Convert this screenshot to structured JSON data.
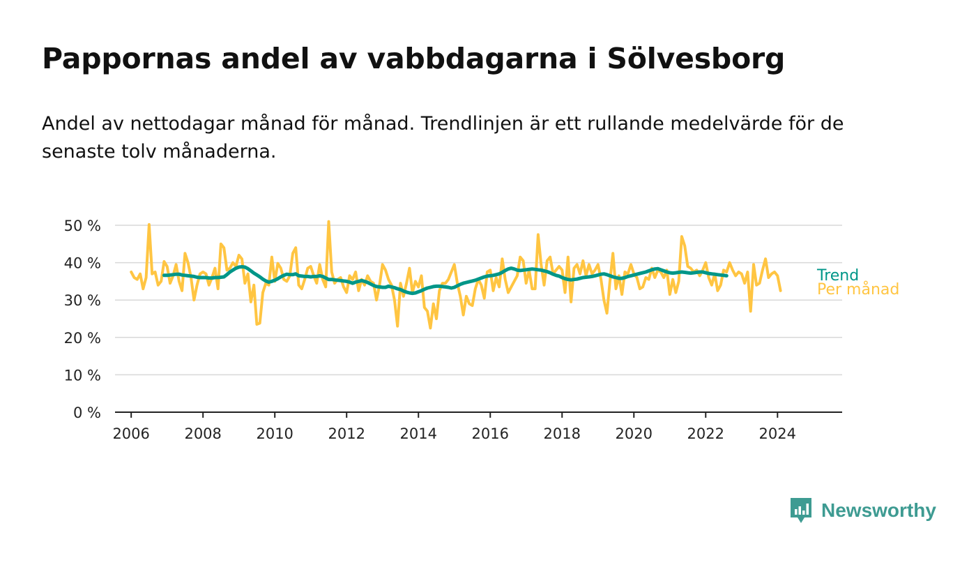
{
  "title": "Pappornas andel av vabbdagarna i Sölvesborg",
  "subtitle": "Andel av nettodagar månad för månad. Trendlinjen är ett rullande medelvärde för de senaste tolv månaderna.",
  "brand": {
    "name": "Newsworthy",
    "icon": "newsworthy-logo-icon"
  },
  "colors": {
    "monthly": "#ffc542",
    "trend": "#009688",
    "grid": "#d8d8d8",
    "axis": "#222222",
    "text": "#222222"
  },
  "chart_data": {
    "type": "line",
    "title": "Pappornas andel av vabbdagarna i Sölvesborg",
    "xlabel": "",
    "ylabel": "",
    "xlim": [
      2005.55,
      2025.8
    ],
    "ylim": [
      0,
      50
    ],
    "grid": true,
    "y_ticks": [
      0,
      10,
      20,
      30,
      40,
      50
    ],
    "y_tick_labels": [
      "0 %",
      "10 %",
      "20 %",
      "30 %",
      "40 %",
      "50 %"
    ],
    "x_ticks": [
      2006,
      2008,
      2010,
      2012,
      2014,
      2016,
      2018,
      2020,
      2022,
      2024
    ],
    "x_tick_labels": [
      "2006",
      "2008",
      "2010",
      "2012",
      "2014",
      "2016",
      "2018",
      "2020",
      "2022",
      "2024"
    ],
    "legend_position": "right-end-of-lines",
    "series": [
      {
        "name": "Per månad",
        "start": 2006.0,
        "step_months": 1,
        "values": [
          37.5,
          36.0,
          35.5,
          37.0,
          33.0,
          36.0,
          50.2,
          37.0,
          37.5,
          34.0,
          35.0,
          40.3,
          39.0,
          34.5,
          36.5,
          39.5,
          35.0,
          32.5,
          42.5,
          40.0,
          36.0,
          30.0,
          34.0,
          37.0,
          37.5,
          37.0,
          34.0,
          36.0,
          38.5,
          33.0,
          45.0,
          44.0,
          38.0,
          38.5,
          40.0,
          39.0,
          42.0,
          41.0,
          34.5,
          37.0,
          29.5,
          34.0,
          23.5,
          23.8,
          32.0,
          34.5,
          34.0,
          41.5,
          35.0,
          39.8,
          38.5,
          35.5,
          35.0,
          36.5,
          42.5,
          44.0,
          34.0,
          33.0,
          35.5,
          38.5,
          39.0,
          36.5,
          34.5,
          39.5,
          35.5,
          33.5,
          51.0,
          37.5,
          34.5,
          35.5,
          36.0,
          33.5,
          32.0,
          36.5,
          35.5,
          37.5,
          32.5,
          35.5,
          34.0,
          36.5,
          35.0,
          34.5,
          30.0,
          34.0,
          39.5,
          38.0,
          35.5,
          34.0,
          30.0,
          23.0,
          34.5,
          31.0,
          34.5,
          38.5,
          32.0,
          35.0,
          33.5,
          36.5,
          28.0,
          27.0,
          22.5,
          29.0,
          25.0,
          32.5,
          34.5,
          34.5,
          35.5,
          37.5,
          39.5,
          34.5,
          31.0,
          26.0,
          31.0,
          29.0,
          28.5,
          33.0,
          35.5,
          34.0,
          30.5,
          37.5,
          38.0,
          32.5,
          36.0,
          33.5,
          41.0,
          35.5,
          32.0,
          33.5,
          35.0,
          36.5,
          41.5,
          40.5,
          34.5,
          38.0,
          33.0,
          33.0,
          47.5,
          39.5,
          34.0,
          40.5,
          41.5,
          37.0,
          38.0,
          39.0,
          38.0,
          32.0,
          41.5,
          29.5,
          38.5,
          39.5,
          37.0,
          40.5,
          36.5,
          39.5,
          37.0,
          38.0,
          39.5,
          35.5,
          30.0,
          26.5,
          35.0,
          42.5,
          33.0,
          36.5,
          31.5,
          37.5,
          37.0,
          39.5,
          37.0,
          36.0,
          33.0,
          33.5,
          36.0,
          35.5,
          38.5,
          36.0,
          38.0,
          37.5,
          36.0,
          38.0,
          31.5,
          35.5,
          32.0,
          35.0,
          47.0,
          44.5,
          39.0,
          38.5,
          37.5,
          38.0,
          36.5,
          38.0,
          40.0,
          36.0,
          34.0,
          37.0,
          32.5,
          34.0,
          38.0,
          37.5,
          40.0,
          38.0,
          36.5,
          37.5,
          37.0,
          34.5,
          37.5,
          27.0,
          39.5,
          34.0,
          34.5,
          38.0,
          41.0,
          36.0,
          37.0,
          37.5,
          36.5,
          32.5
        ]
      },
      {
        "name": "Trend",
        "start": 2006.9167,
        "step_months": 1,
        "values": [
          36.6,
          36.6,
          36.7,
          36.8,
          36.9,
          36.9,
          36.7,
          36.6,
          36.5,
          36.4,
          36.3,
          36.1,
          36.0,
          36.0,
          36.0,
          35.9,
          35.9,
          36.0,
          36.0,
          36.1,
          36.2,
          36.8,
          37.5,
          38.0,
          38.5,
          38.8,
          38.9,
          38.8,
          38.4,
          37.8,
          37.2,
          36.7,
          36.2,
          35.6,
          35.1,
          34.8,
          35.0,
          35.3,
          35.7,
          36.2,
          36.6,
          36.9,
          36.8,
          36.8,
          37.0,
          36.5,
          36.4,
          36.3,
          36.3,
          36.2,
          36.3,
          36.3,
          36.5,
          36.3,
          35.9,
          35.5,
          35.5,
          35.4,
          35.3,
          35.2,
          35.1,
          35.0,
          34.8,
          34.5,
          34.8,
          35.0,
          35.2,
          35.0,
          34.7,
          34.3,
          33.9,
          33.6,
          33.5,
          33.4,
          33.4,
          33.7,
          33.5,
          33.3,
          33.0,
          32.8,
          32.4,
          32.1,
          31.9,
          31.8,
          31.9,
          32.2,
          32.5,
          32.9,
          33.2,
          33.4,
          33.6,
          33.7,
          33.7,
          33.6,
          33.5,
          33.4,
          33.2,
          33.4,
          33.8,
          34.2,
          34.5,
          34.7,
          34.9,
          35.1,
          35.3,
          35.6,
          35.9,
          36.2,
          36.4,
          36.5,
          36.6,
          36.8,
          37.0,
          37.4,
          37.9,
          38.3,
          38.5,
          38.3,
          38.0,
          37.9,
          38.0,
          38.1,
          38.2,
          38.3,
          38.2,
          38.1,
          38.0,
          37.8,
          37.6,
          37.3,
          36.9,
          36.6,
          36.4,
          36.0,
          35.7,
          35.5,
          35.4,
          35.5,
          35.6,
          35.8,
          36.0,
          36.1,
          36.2,
          36.3,
          36.5,
          36.7,
          36.9,
          37.0,
          36.8,
          36.5,
          36.2,
          36.0,
          35.8,
          35.8,
          36.0,
          36.3,
          36.5,
          36.7,
          36.9,
          37.1,
          37.3,
          37.5,
          37.8,
          38.1,
          38.3,
          38.4,
          38.1,
          37.8,
          37.5,
          37.3,
          37.2,
          37.3,
          37.4,
          37.5,
          37.4,
          37.3,
          37.2,
          37.3,
          37.4,
          37.5,
          37.5,
          37.3,
          37.1,
          37.0,
          36.9,
          36.8,
          36.7,
          36.6,
          36.5
        ]
      }
    ],
    "end_labels": {
      "trend": "Trend",
      "monthly": "Per månad"
    }
  }
}
